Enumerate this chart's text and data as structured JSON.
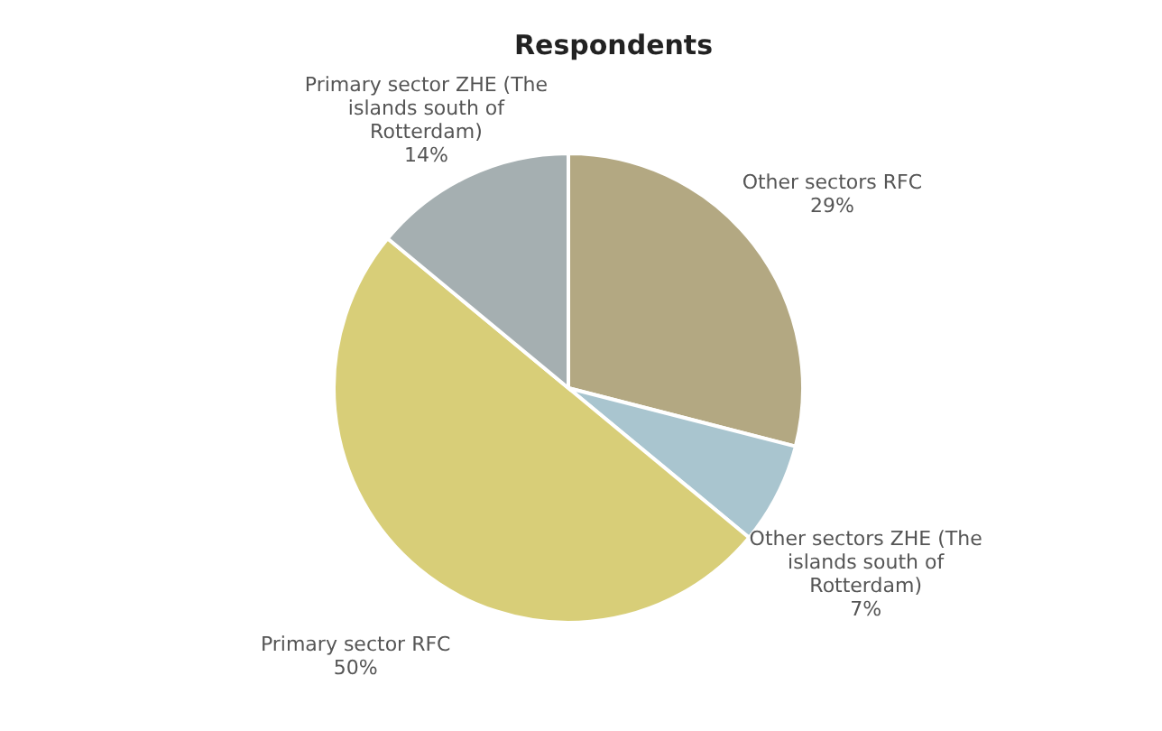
{
  "chart_data": {
    "type": "pie",
    "title": "Respondents",
    "categories": [
      "Other sectors RFC",
      "Other sectors ZHE (The islands south of Rotterdam)",
      "Primary sector RFC",
      "Primary sector ZHE (The islands south of Rotterdam)"
    ],
    "values": [
      29,
      7,
      50,
      14
    ],
    "colors": [
      "#b3a882",
      "#a9c5cf",
      "#d8ce78",
      "#a5afb1"
    ],
    "value_labels": [
      "29%",
      "7%",
      "50%",
      "14%"
    ],
    "legend": false
  }
}
